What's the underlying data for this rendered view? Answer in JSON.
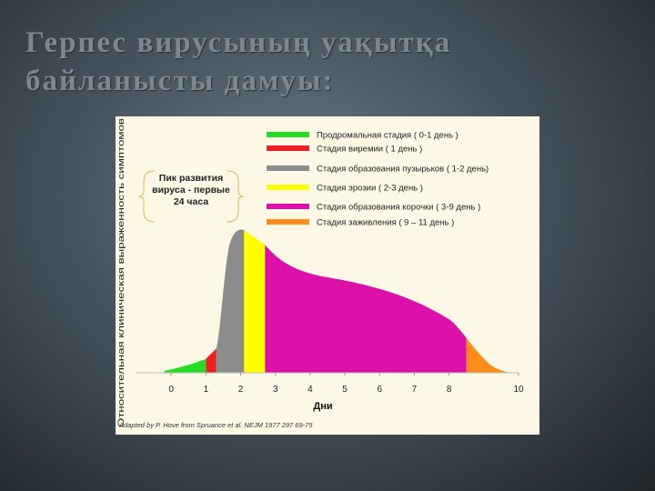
{
  "title": "Герпес вирусының уақытқа байланысты дамуы:",
  "chart_data": {
    "type": "area",
    "ylabel": "Относительная клиническая выраженность симптомов",
    "xlabel": "Дни",
    "annotation": "Пик развития вируса - первые 24 часа",
    "source": "Adapted by P. Hove from Spruance et al. NEJM 1977 297 69-75",
    "xlim": [
      -1,
      10
    ],
    "xticks": [
      0,
      1,
      2,
      3,
      4,
      5,
      6,
      7,
      8,
      10
    ],
    "series": [
      {
        "name": "Продромальная стадия ( 0-1 день )",
        "color": "#22dd22",
        "x": [
          -0.2,
          1.0
        ]
      },
      {
        "name": "Стадия виремии ( 1 день )",
        "color": "#ee2222",
        "x": [
          1.0,
          1.3
        ]
      },
      {
        "name": "Стадия образования пузырьков ( 1-2 день)",
        "color": "#8c8c8c",
        "x": [
          1.3,
          2.1
        ]
      },
      {
        "name": "Стадия эрозии ( 2-3 день )",
        "color": "#ffff00",
        "x": [
          2.1,
          2.7
        ]
      },
      {
        "name": "Стадия образования корочки ( 3-9 день )",
        "color": "#dd11aa",
        "x": [
          2.7,
          8.5
        ]
      },
      {
        "name": "Стадия заживления ( 9 – 11 день )",
        "color": "#ff8c1a",
        "x": [
          8.5,
          9.9
        ]
      }
    ]
  }
}
